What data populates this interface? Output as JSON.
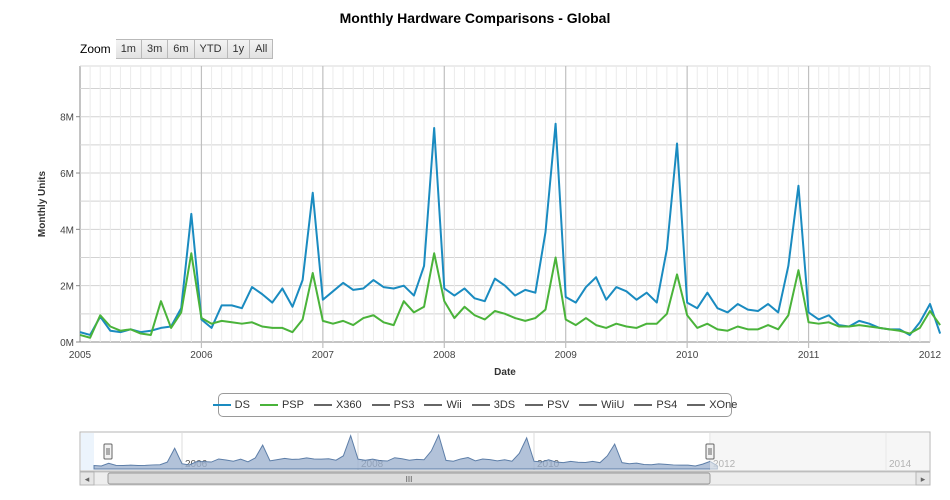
{
  "title": "Monthly Hardware Comparisons - Global",
  "zoom": {
    "label": "Zoom",
    "buttons": [
      "1m",
      "3m",
      "6m",
      "YTD",
      "1y",
      "All"
    ]
  },
  "colors": {
    "ds": "#1a8bc0",
    "psp": "#4ab33a",
    "inactive": "#666666",
    "grid": "#c0c0c0",
    "navigator_fill": "#9fb3cf",
    "navigator_line": "#5d7ea8"
  },
  "legend": [
    {
      "name": "DS",
      "active": true
    },
    {
      "name": "PSP",
      "active": true
    },
    {
      "name": "X360",
      "active": false
    },
    {
      "name": "PS3",
      "active": false
    },
    {
      "name": "Wii",
      "active": false
    },
    {
      "name": "3DS",
      "active": false
    },
    {
      "name": "PSV",
      "active": false
    },
    {
      "name": "WiiU",
      "active": false
    },
    {
      "name": "PS4",
      "active": false
    },
    {
      "name": "XOne",
      "active": false
    }
  ],
  "navigator": {
    "tick_labels": [
      "2006",
      "2008",
      "2010",
      "2012",
      "2014"
    ],
    "scroll_grip": "III",
    "arrow_left": "◂",
    "arrow_right": "▸"
  },
  "chart_data": {
    "type": "line",
    "xlabel": "Date",
    "ylabel": "Monthly Units",
    "x_start": "2005-01",
    "x_ticks": [
      "2005",
      "2006",
      "2007",
      "2008",
      "2009",
      "2010",
      "2011",
      "2012"
    ],
    "y_ticks": [
      "0M",
      "2M",
      "4M",
      "6M",
      "8M"
    ],
    "ylim": [
      0,
      9800000
    ],
    "grid": true,
    "legend_position": "bottom",
    "series": [
      {
        "name": "DS",
        "values": [
          350000,
          250000,
          900000,
          400000,
          350000,
          450000,
          350000,
          400000,
          500000,
          550000,
          1200000,
          4550000,
          800000,
          500000,
          1300000,
          1300000,
          1200000,
          1950000,
          1700000,
          1400000,
          1900000,
          1250000,
          2200000,
          5300000,
          1500000,
          1800000,
          2100000,
          1850000,
          1900000,
          2200000,
          1950000,
          1900000,
          2000000,
          1650000,
          2700000,
          7600000,
          1900000,
          1650000,
          1900000,
          1550000,
          1450000,
          2250000,
          2000000,
          1650000,
          1850000,
          1750000,
          3900000,
          7750000,
          1600000,
          1400000,
          1950000,
          2300000,
          1500000,
          1950000,
          1800000,
          1500000,
          1750000,
          1400000,
          3300000,
          7050000,
          1400000,
          1200000,
          1750000,
          1200000,
          1050000,
          1350000,
          1150000,
          1100000,
          1350000,
          1050000,
          2700000,
          5550000,
          1050000,
          800000,
          950000,
          600000,
          550000,
          750000,
          650000,
          500000,
          450000,
          450000,
          250000,
          700000,
          1350000,
          300000
        ]
      },
      {
        "name": "PSP",
        "values": [
          250000,
          150000,
          950000,
          550000,
          400000,
          450000,
          300000,
          250000,
          1450000,
          500000,
          1050000,
          3150000,
          850000,
          650000,
          750000,
          700000,
          650000,
          700000,
          550000,
          500000,
          500000,
          350000,
          800000,
          2450000,
          750000,
          650000,
          750000,
          600000,
          850000,
          950000,
          700000,
          600000,
          1450000,
          1050000,
          1250000,
          3150000,
          1450000,
          850000,
          1250000,
          950000,
          800000,
          1100000,
          1000000,
          850000,
          750000,
          850000,
          1150000,
          3000000,
          800000,
          600000,
          850000,
          600000,
          500000,
          650000,
          550000,
          500000,
          650000,
          650000,
          1000000,
          2400000,
          950000,
          500000,
          650000,
          450000,
          400000,
          550000,
          450000,
          450000,
          600000,
          450000,
          950000,
          2550000,
          700000,
          650000,
          700000,
          550000,
          550000,
          600000,
          550000,
          500000,
          450000,
          400000,
          300000,
          500000,
          1100000,
          600000
        ]
      }
    ]
  }
}
